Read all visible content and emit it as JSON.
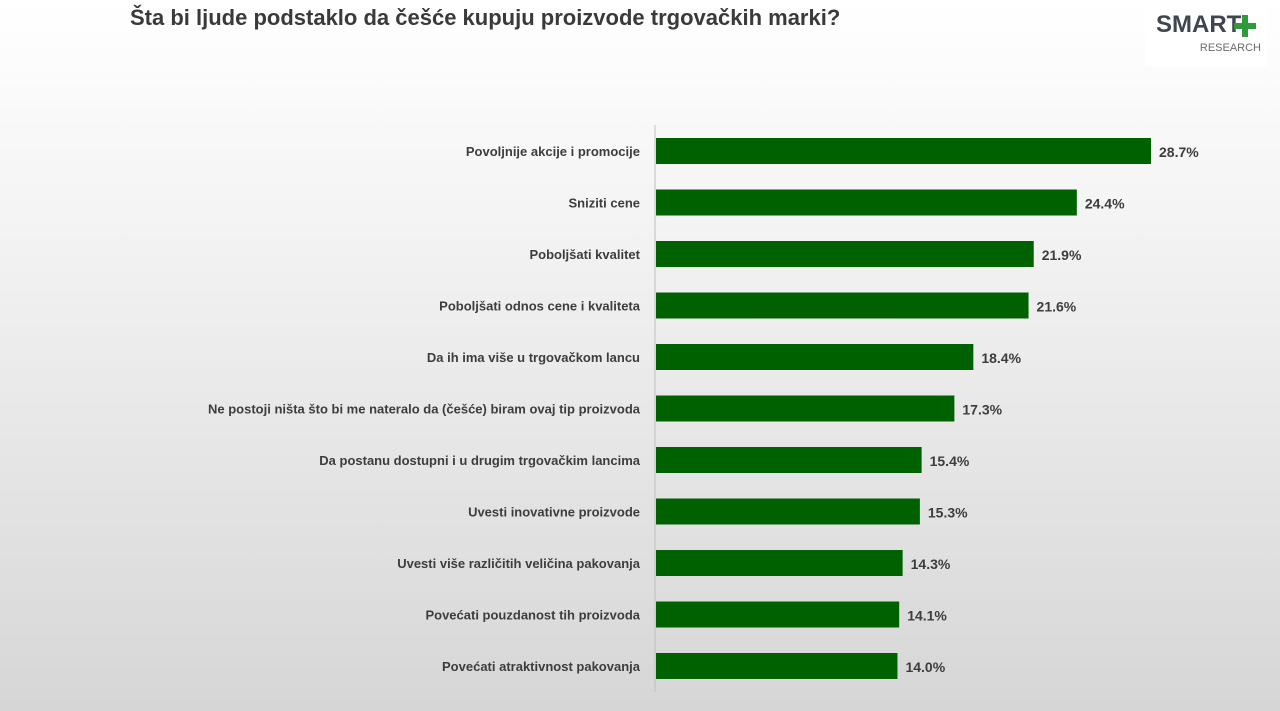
{
  "title": "Šta bi ljude podstaklo da češće kupuju proizvode trgovačkih marki?",
  "logo": {
    "main": "SMART",
    "sub": "RESEARCH"
  },
  "colors": {
    "bar": "#006100",
    "logo_plus": "#2e9a3a",
    "axis": "#bfbfbf"
  },
  "chart_data": {
    "type": "bar",
    "orientation": "horizontal",
    "categories": [
      "Povoljnije akcije i promocije",
      "Sniziti cene",
      "Poboljšati kvalitet",
      "Poboljšati odnos cene i kvaliteta",
      "Da ih ima više u trgovačkom lancu",
      "Ne postoji ništa što bi me nateralo da (češće) biram ovaj tip proizvoda",
      "Da postanu dostupni i u drugim trgovačkim lancima",
      "Uvesti inovativne proizvode",
      "Uvesti više različitih veličina pakovanja",
      "Povećati pouzdanost tih proizvoda",
      "Povećati atraktivnost pakovanja"
    ],
    "values": [
      28.7,
      24.4,
      21.9,
      21.6,
      18.4,
      17.3,
      15.4,
      15.3,
      14.3,
      14.1,
      14.0
    ],
    "value_labels": [
      "28.7%",
      "24.4%",
      "21.9%",
      "21.6%",
      "18.4%",
      "17.3%",
      "15.4%",
      "15.3%",
      "14.3%",
      "14.1%",
      "14.0%"
    ],
    "xlim": [
      0,
      30
    ],
    "grid": false,
    "legend": "none"
  }
}
